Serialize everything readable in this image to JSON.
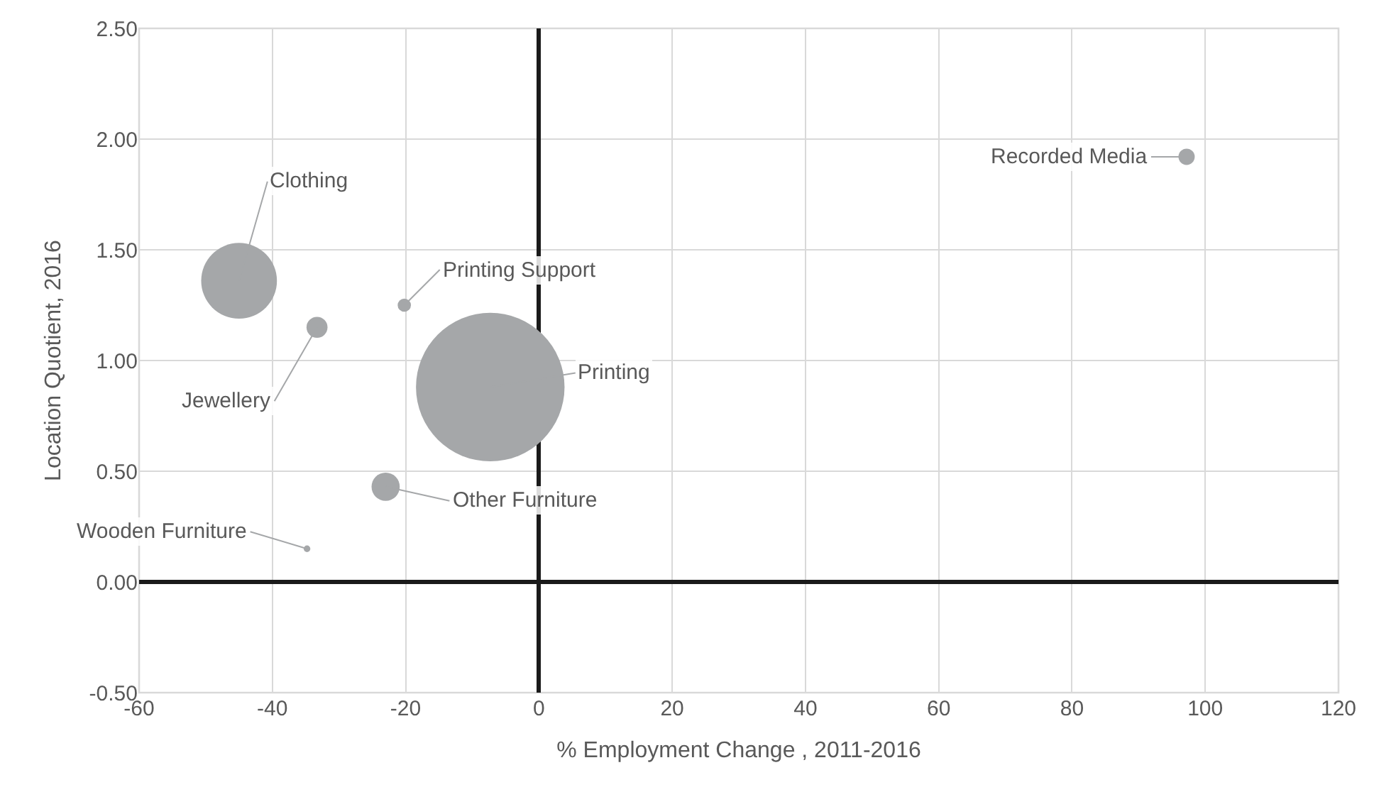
{
  "chart_data": {
    "type": "bubble",
    "xlabel": "% Employment Change , 2011-2016",
    "ylabel": "Location Quotient, 2016",
    "x": [
      -45,
      -33.3,
      -20.2,
      -7.3,
      -23,
      -34.8,
      97.2
    ],
    "series": [
      {
        "color": "#a5a7a9",
        "values": [
          1.36,
          1.15,
          1.25,
          0.88,
          0.43,
          0.15,
          1.92
        ],
        "sizes": [
          0.26,
          0.02,
          0.008,
          1,
          0.036,
          0.002,
          0.012
        ]
      }
    ],
    "annotations": [
      {
        "text": "Clothing",
        "x": -45,
        "y": 1.36
      },
      {
        "text": "Jewellery",
        "x": -33.3,
        "y": 1.15
      },
      {
        "text": "Printing Support",
        "x": -20.2,
        "y": 1.25
      },
      {
        "text": "Printing",
        "x": -7.3,
        "y": 0.88
      },
      {
        "text": "Other Furniture",
        "x": -23,
        "y": 0.43
      },
      {
        "text": "Wooden Furniture",
        "x": -34.8,
        "y": 0.15
      },
      {
        "text": "Recorded Media",
        "x": 97.2,
        "y": 1.92
      }
    ],
    "xlim": [
      -60,
      120
    ],
    "xticks": [
      -60,
      -40,
      -20,
      0,
      20,
      40,
      60,
      80,
      100,
      120
    ],
    "ylim": [
      -0.5,
      2.5
    ],
    "yticks": [
      {
        "value": -0.5,
        "label": "-0.50"
      },
      {
        "value": 0,
        "label": "0.00"
      },
      {
        "value": 0.5,
        "label": "0.50"
      },
      {
        "value": 1,
        "label": "1.00"
      },
      {
        "value": 1.5,
        "label": "1.50"
      },
      {
        "value": 2,
        "label": "2.00"
      },
      {
        "value": 2.5,
        "label": "2.50"
      }
    ],
    "grid": true
  }
}
